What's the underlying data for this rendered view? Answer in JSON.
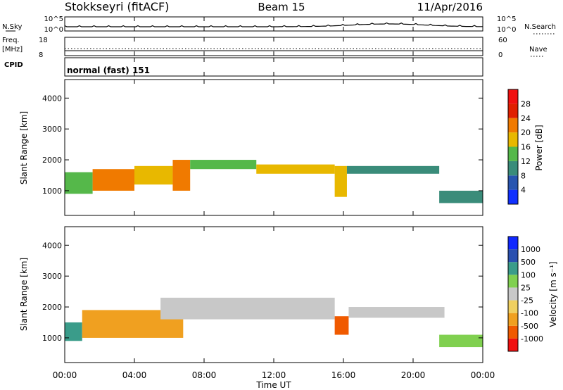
{
  "header": {
    "title": "Stokkseyri (fitACF)",
    "beam": "Beam 15",
    "date": "11/Apr/2016"
  },
  "summary_panels": {
    "nsky_label": "N.Sky",
    "noise_top_tick": "10^5",
    "noise_bottom_tick": "10^0",
    "nsearch_label": "N.Search",
    "freq_label_line1": "Freq.",
    "freq_label_line2": "[MHz]",
    "freq_top_tick": "18",
    "freq_bottom_tick": "8",
    "nave_top_tick": "60",
    "nave_bottom_tick": "0",
    "nave_label": "Nave",
    "cpid_label": "CPID",
    "cpid_value": "normal (fast) 151"
  },
  "chart_data": [
    {
      "type": "heatmap",
      "name": "power",
      "ylabel": "Slant Range [km]",
      "ylim": [
        200,
        4600
      ],
      "yticks": [
        {
          "v": 1000,
          "label": "1000"
        },
        {
          "v": 2000,
          "label": "2000"
        },
        {
          "v": 3000,
          "label": "3000"
        },
        {
          "v": 4000,
          "label": "4000"
        }
      ],
      "colorbar_label": "Power [dB]",
      "colorbar_ticks": [
        "4",
        "8",
        "12",
        "16",
        "20",
        "24",
        "28"
      ],
      "colorbar_colors": [
        "#1030ff",
        "#2855b0",
        "#3a8c7a",
        "#55b84a",
        "#e8b800",
        "#f07a00",
        "#e02000",
        "#f01010"
      ],
      "bands": [
        {
          "t0": 0.0,
          "t1": 1.6,
          "r0": 900,
          "r1": 1600,
          "value": 14
        },
        {
          "t0": 1.6,
          "t1": 4.0,
          "r0": 1000,
          "r1": 1700,
          "value": 20
        },
        {
          "t0": 4.0,
          "t1": 6.2,
          "r0": 1200,
          "r1": 1800,
          "value": 16
        },
        {
          "t0": 6.2,
          "t1": 7.2,
          "r0": 1000,
          "r1": 2000,
          "value": 22
        },
        {
          "t0": 7.2,
          "t1": 11.0,
          "r0": 1700,
          "r1": 2000,
          "value": 14
        },
        {
          "t0": 11.0,
          "t1": 15.5,
          "r0": 1550,
          "r1": 1850,
          "value": 16
        },
        {
          "t0": 15.5,
          "t1": 16.2,
          "r0": 800,
          "r1": 1800,
          "value": 18
        },
        {
          "t0": 16.2,
          "t1": 21.5,
          "r0": 1550,
          "r1": 1800,
          "value": 10
        },
        {
          "t0": 21.5,
          "t1": 24.0,
          "r0": 600,
          "r1": 1000,
          "value": 8
        }
      ]
    },
    {
      "type": "heatmap",
      "name": "velocity",
      "ylabel": "Slant Range [km]",
      "xlabel": "Time UT",
      "ylim": [
        200,
        4600
      ],
      "yticks": [
        {
          "v": 1000,
          "label": "1000"
        },
        {
          "v": 2000,
          "label": "2000"
        },
        {
          "v": 3000,
          "label": "3000"
        },
        {
          "v": 4000,
          "label": "4000"
        }
      ],
      "xticks": [
        "00:00",
        "04:00",
        "08:00",
        "12:00",
        "16:00",
        "20:00",
        "00:00"
      ],
      "xlim_hours": [
        0,
        24
      ],
      "colorbar_label": "Velocity [m s⁻¹]",
      "colorbar_ticks": [
        "-1000",
        "-500",
        "-100",
        "-25",
        "25",
        "100",
        "500",
        "1000"
      ],
      "colorbar_colors": [
        "#f01010",
        "#f05a00",
        "#f0a020",
        "#f0d060",
        "#c8c8c8",
        "#80d050",
        "#3a9c8a",
        "#2a50b0",
        "#1028ff"
      ],
      "bands": [
        {
          "t0": 0.0,
          "t1": 1.0,
          "r0": 900,
          "r1": 1500,
          "value": 200
        },
        {
          "t0": 1.0,
          "t1": 6.8,
          "r0": 1000,
          "r1": 1900,
          "value": -150
        },
        {
          "t0": 5.5,
          "t1": 15.5,
          "r0": 1600,
          "r1": 2300,
          "value": 0
        },
        {
          "t0": 15.5,
          "t1": 16.3,
          "r0": 1100,
          "r1": 1700,
          "value": -900
        },
        {
          "t0": 16.3,
          "t1": 21.8,
          "r0": 1650,
          "r1": 2000,
          "value": 0
        },
        {
          "t0": 21.5,
          "t1": 24.0,
          "r0": 700,
          "r1": 1100,
          "value": 50
        }
      ]
    }
  ]
}
